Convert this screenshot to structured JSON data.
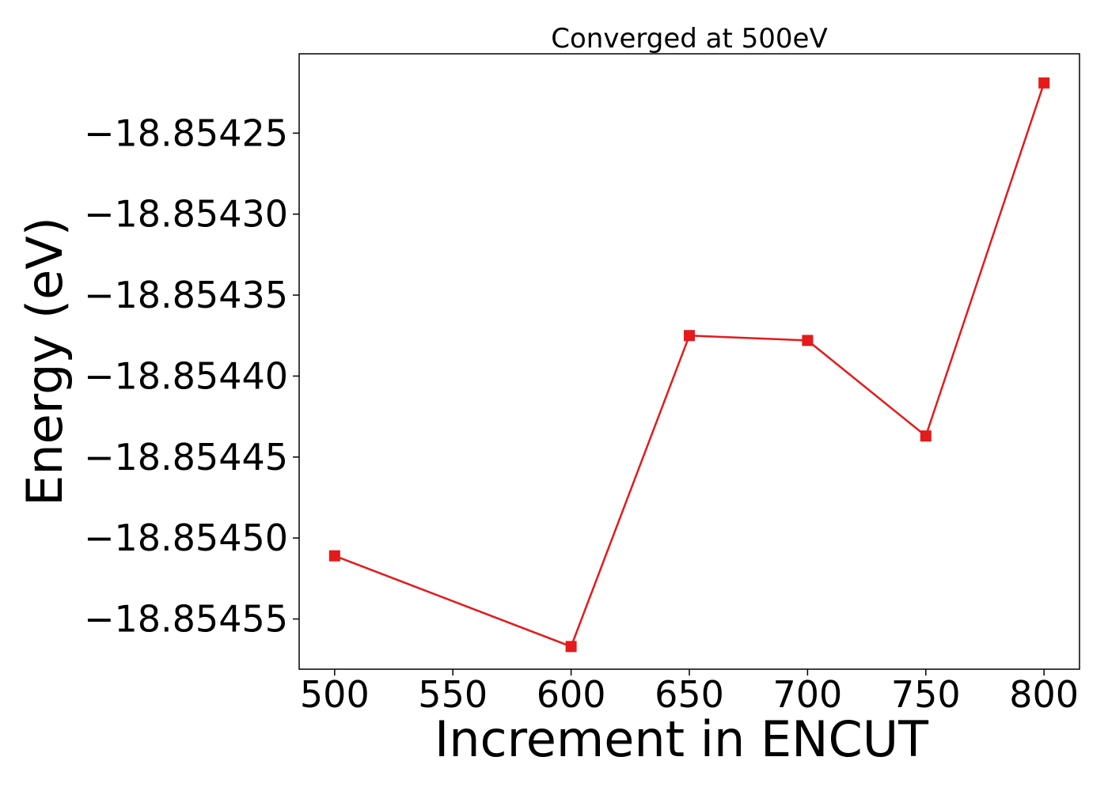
{
  "chart_data": {
    "type": "line",
    "title": "Converged at 500eV",
    "xlabel": "Increment in ENCUT",
    "ylabel": "Energy (eV)",
    "x_ticks": [
      500,
      550,
      600,
      650,
      700,
      750,
      800
    ],
    "y_ticks": [
      -18.85425,
      -18.8543,
      -18.85435,
      -18.8544,
      -18.85445,
      -18.8545,
      -18.85455
    ],
    "y_tick_labels": [
      "−18.85425",
      "−18.85430",
      "−18.85435",
      "−18.85440",
      "−18.85445",
      "−18.85450",
      "−18.85455"
    ],
    "xlim": [
      485,
      815
    ],
    "ylim": [
      -18.854581,
      -18.854201
    ],
    "grid": false,
    "series": [
      {
        "color": "#e41a1c",
        "marker": "square",
        "x": [
          500,
          600,
          650,
          700,
          750,
          800
        ],
        "y": [
          -18.854511,
          -18.854567,
          -18.854375,
          -18.854378,
          -18.854437,
          -18.854219
        ]
      }
    ]
  }
}
